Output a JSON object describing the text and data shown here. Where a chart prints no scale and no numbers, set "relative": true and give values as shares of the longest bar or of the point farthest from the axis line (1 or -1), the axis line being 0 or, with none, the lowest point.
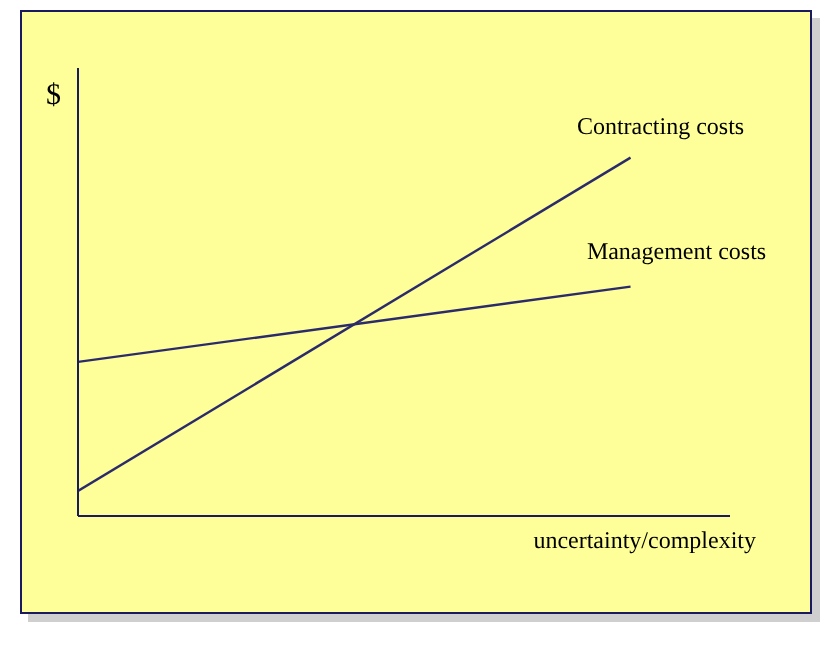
{
  "chart_data": {
    "type": "line",
    "relative": true,
    "xlabel": "uncertainty/complexity",
    "ylabel": "$",
    "categories": [
      null,
      null
    ],
    "grid": false,
    "legend": false,
    "marker": "none",
    "line_style": "solid",
    "series": [
      {
        "name": "Contracting costs",
        "color": "#2b2b6b",
        "values": [
          0.07,
          1
        ]
      },
      {
        "name": "Management costs",
        "color": "#2b2b6b",
        "values": [
          0.43,
          0.64
        ]
      }
    ]
  }
}
